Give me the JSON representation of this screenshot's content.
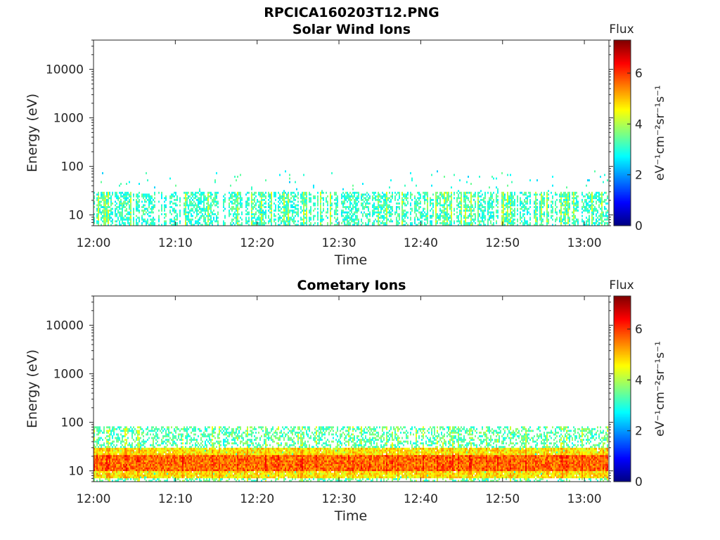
{
  "figure_title": "RPCICA160203T12.PNG",
  "chart_data": [
    {
      "type": "heatmap",
      "title": "Solar Wind Ions",
      "xlabel": "Time",
      "ylabel": "Energy (eV)",
      "x_range": [
        "12:00",
        "13:03"
      ],
      "x_ticks": [
        "12:00",
        "12:10",
        "12:20",
        "12:30",
        "12:40",
        "12:50",
        "13:00"
      ],
      "y_scale": "log",
      "y_range": [
        6,
        40000
      ],
      "y_ticks": [
        "10",
        "100",
        "1000",
        "10000"
      ],
      "colorbar": {
        "title": "Flux",
        "label": "eV⁻¹cm⁻²sr⁻¹s⁻¹",
        "range": [
          0,
          7.3
        ],
        "ticks": [
          "0",
          "2",
          "4",
          "6"
        ],
        "colormap": "jet"
      },
      "bands": [
        {
          "energy_range_eV": [
            6,
            30
          ],
          "typical_level": 3.0,
          "peak_level": 4.5,
          "coverage": 0.55
        },
        {
          "energy_range_eV": [
            30,
            80
          ],
          "typical_level": 2.8,
          "peak_level": 3.5,
          "coverage": 0.02
        }
      ]
    },
    {
      "type": "heatmap",
      "title": "Cometary Ions",
      "xlabel": "Time",
      "ylabel": "Energy (eV)",
      "x_range": [
        "12:00",
        "13:03"
      ],
      "x_ticks": [
        "12:00",
        "12:10",
        "12:20",
        "12:30",
        "12:40",
        "12:50",
        "13:00"
      ],
      "y_scale": "log",
      "y_range": [
        6,
        40000
      ],
      "y_ticks": [
        "10",
        "100",
        "1000",
        "10000"
      ],
      "colorbar": {
        "title": "Flux",
        "label": "eV⁻¹cm⁻²sr⁻¹s⁻¹",
        "range": [
          0,
          7.3
        ],
        "ticks": [
          "0",
          "2",
          "4",
          "6"
        ],
        "colormap": "jet"
      },
      "bands": [
        {
          "energy_range_eV": [
            10,
            22
          ],
          "typical_level": 5.5,
          "peak_level": 6.5,
          "coverage": 1.0
        },
        {
          "energy_range_eV": [
            7,
            30
          ],
          "typical_level": 4.6,
          "peak_level": 5.5,
          "coverage": 0.95
        },
        {
          "energy_range_eV": [
            6,
            80
          ],
          "typical_level": 3.2,
          "peak_level": 4.5,
          "coverage": 0.4
        }
      ]
    }
  ]
}
